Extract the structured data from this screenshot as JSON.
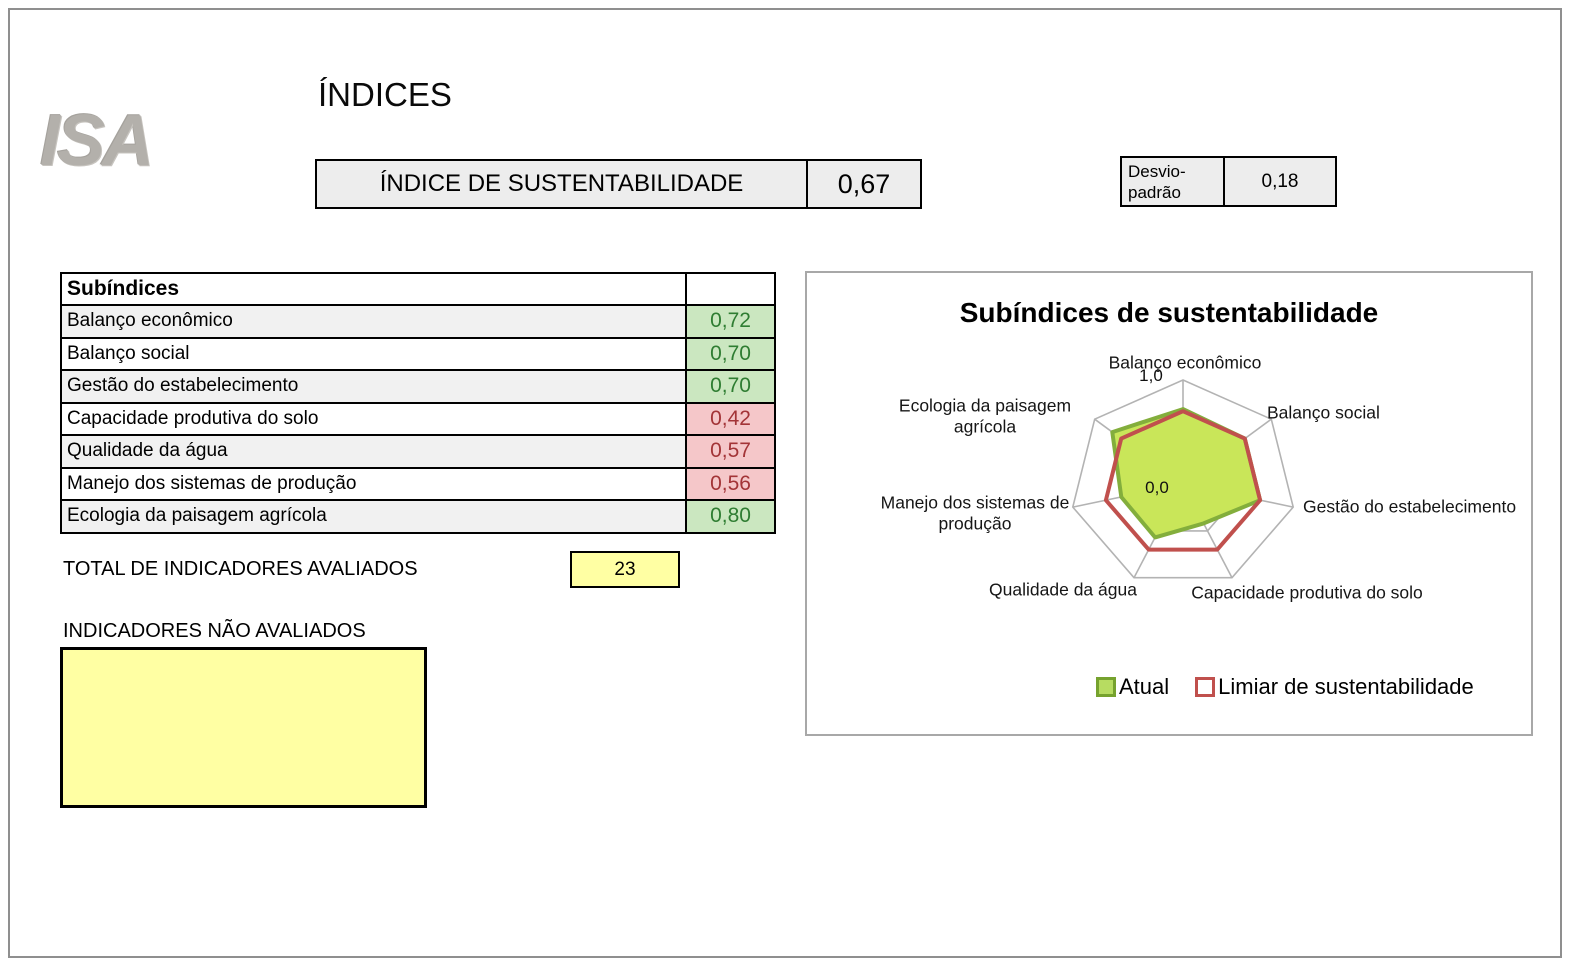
{
  "page": {
    "logo": "ISA",
    "title": "ÍNDICES"
  },
  "index_box": {
    "label": "ÍNDICE DE SUSTENTABILIDADE",
    "value": "0,67"
  },
  "stddev_box": {
    "label": "Desvio-padrão",
    "value": "0,18"
  },
  "subindices": {
    "header": "Subíndices",
    "rows": [
      {
        "label": "Balanço econômico",
        "value": "0,72",
        "status": "good"
      },
      {
        "label": "Balanço social",
        "value": "0,70",
        "status": "good"
      },
      {
        "label": "Gestão do estabelecimento",
        "value": "0,70",
        "status": "good"
      },
      {
        "label": "Capacidade produtiva do solo",
        "value": "0,42",
        "status": "bad"
      },
      {
        "label": "Qualidade da água",
        "value": "0,57",
        "status": "bad"
      },
      {
        "label": "Manejo dos sistemas de produção",
        "value": "0,56",
        "status": "bad"
      },
      {
        "label": "Ecologia da paisagem agrícola",
        "value": "0,80",
        "status": "good"
      }
    ]
  },
  "totals": {
    "evaluated_label": "TOTAL DE INDICADORES AVALIADOS",
    "evaluated_value": "23",
    "not_evaluated_label": "INDICADORES NÃO AVALIADOS",
    "not_evaluated_value": ""
  },
  "chart_data": {
    "type": "radar",
    "title": "Subíndices de sustentabilidade",
    "categories": [
      "Balanço econômico",
      "Balanço social",
      "Gestão do estabelecimento",
      "Capacidade produtiva do solo",
      "Qualidade da água",
      "Manejo dos sistemas de produção",
      "Ecologia da paisagem agrícola"
    ],
    "series": [
      {
        "name": "Atual",
        "values": [
          0.72,
          0.7,
          0.7,
          0.42,
          0.57,
          0.56,
          0.8
        ],
        "fill": "#c9e659",
        "stroke": "#83ae3c"
      },
      {
        "name": "Limiar de sustentabilidade",
        "values": [
          0.7,
          0.7,
          0.7,
          0.7,
          0.7,
          0.7,
          0.7
        ],
        "fill": "none",
        "stroke": "#c0504d"
      }
    ],
    "axis": {
      "min": 0,
      "max": 1,
      "min_label": "0,0",
      "max_label": "1,0",
      "rings": [
        0.5,
        1.0
      ],
      "grid_color": "#b3b3b3"
    },
    "legend_position": "bottom"
  },
  "colors": {
    "good_bg": "#cbe7c0",
    "good_text": "#2f7d32",
    "bad_bg": "#f5c7c9",
    "bad_text": "#a33437",
    "input_bg": "#ffffa3",
    "header_cell_bg": "#ededed",
    "series_atual": "#83ae3c",
    "series_limiar": "#c0504d"
  }
}
